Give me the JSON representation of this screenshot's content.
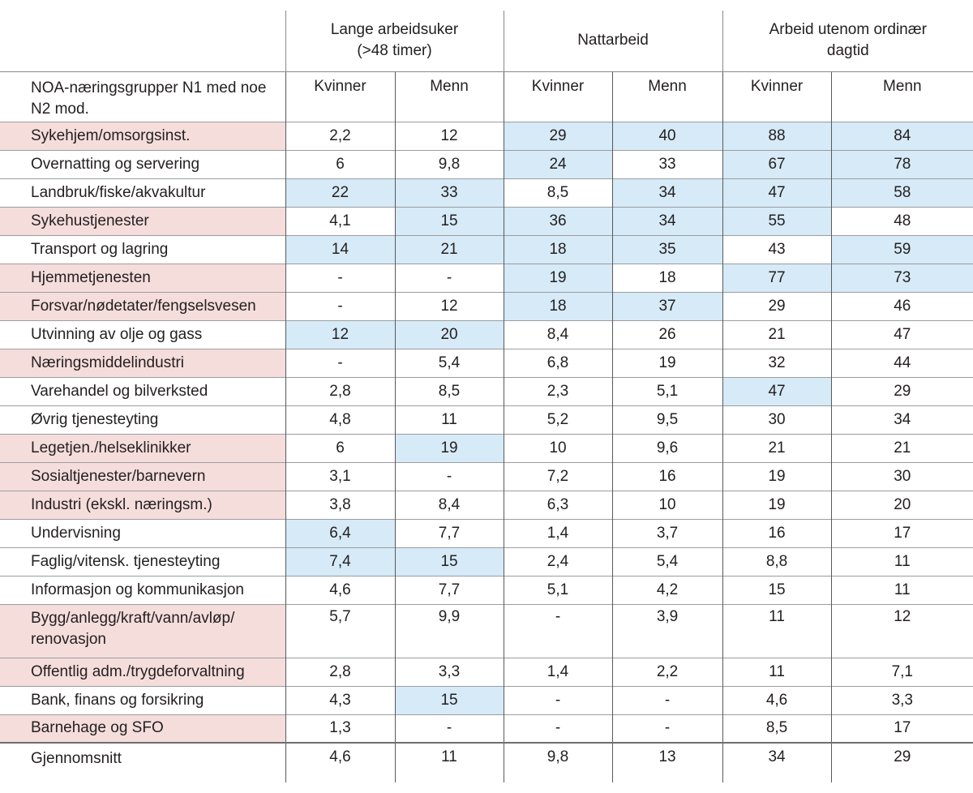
{
  "colors": {
    "row_highlight_pink": "#f5dddc",
    "cell_highlight_blue": "#d6eaf7",
    "border_light": "#9b9da0",
    "border_dark": "#58595b",
    "text": "#231f20"
  },
  "table": {
    "corner_label": "NOA-næringsgrupper N1 med noe\nN2 mod.",
    "groups": [
      {
        "label": "Lange arbeidsuker\n(>48 timer)"
      },
      {
        "label": "Nattarbeid"
      },
      {
        "label": "Arbeid utenom ordinær\ndagtid"
      }
    ],
    "sub_headers": [
      "Kvinner",
      "Menn",
      "Kvinner",
      "Menn",
      "Kvinner",
      "Menn"
    ],
    "rows": [
      {
        "label": "Sykehjem/omsorgsinst.",
        "pink": true,
        "cells": [
          {
            "v": "2,2"
          },
          {
            "v": "12"
          },
          {
            "v": "29",
            "hl": true
          },
          {
            "v": "40",
            "hl": true
          },
          {
            "v": "88",
            "hl": true
          },
          {
            "v": "84",
            "hl": true
          }
        ]
      },
      {
        "label": "Overnatting og servering",
        "pink": false,
        "cells": [
          {
            "v": "6"
          },
          {
            "v": "9,8"
          },
          {
            "v": "24",
            "hl": true
          },
          {
            "v": "33"
          },
          {
            "v": "67",
            "hl": true
          },
          {
            "v": "78",
            "hl": true
          }
        ]
      },
      {
        "label": "Landbruk/fiske/akvakultur",
        "pink": false,
        "cells": [
          {
            "v": "22",
            "hl": true
          },
          {
            "v": "33",
            "hl": true
          },
          {
            "v": "8,5"
          },
          {
            "v": "34",
            "hl": true
          },
          {
            "v": "47",
            "hl": true
          },
          {
            "v": "58",
            "hl": true
          }
        ]
      },
      {
        "label": "Sykehustjenester",
        "pink": true,
        "cells": [
          {
            "v": "4,1"
          },
          {
            "v": "15",
            "hl": true
          },
          {
            "v": "36",
            "hl": true
          },
          {
            "v": "34",
            "hl": true
          },
          {
            "v": "55",
            "hl": true
          },
          {
            "v": "48"
          }
        ]
      },
      {
        "label": "Transport og lagring",
        "pink": false,
        "cells": [
          {
            "v": "14",
            "hl": true
          },
          {
            "v": "21",
            "hl": true
          },
          {
            "v": "18",
            "hl": true
          },
          {
            "v": "35",
            "hl": true
          },
          {
            "v": "43"
          },
          {
            "v": "59",
            "hl": true
          }
        ]
      },
      {
        "label": "Hjemmetjenesten",
        "pink": true,
        "cells": [
          {
            "v": "-"
          },
          {
            "v": "-"
          },
          {
            "v": "19",
            "hl": true
          },
          {
            "v": "18"
          },
          {
            "v": "77",
            "hl": true
          },
          {
            "v": "73",
            "hl": true
          }
        ]
      },
      {
        "label": "Forsvar/nødetater/fengselsvesen",
        "pink": true,
        "cells": [
          {
            "v": "-"
          },
          {
            "v": "12"
          },
          {
            "v": "18",
            "hl": true
          },
          {
            "v": "37",
            "hl": true
          },
          {
            "v": "29"
          },
          {
            "v": "46"
          }
        ]
      },
      {
        "label": "Utvinning av olje og gass",
        "pink": false,
        "cells": [
          {
            "v": "12",
            "hl": true
          },
          {
            "v": "20",
            "hl": true
          },
          {
            "v": "8,4"
          },
          {
            "v": "26"
          },
          {
            "v": "21"
          },
          {
            "v": "47"
          }
        ]
      },
      {
        "label": "Næringsmiddelindustri",
        "pink": true,
        "cells": [
          {
            "v": "-"
          },
          {
            "v": "5,4"
          },
          {
            "v": "6,8"
          },
          {
            "v": "19"
          },
          {
            "v": "32"
          },
          {
            "v": "44"
          }
        ]
      },
      {
        "label": "Varehandel og bilverksted",
        "pink": false,
        "cells": [
          {
            "v": "2,8"
          },
          {
            "v": "8,5"
          },
          {
            "v": "2,3"
          },
          {
            "v": "5,1"
          },
          {
            "v": "47",
            "hl": true
          },
          {
            "v": "29"
          }
        ]
      },
      {
        "label": "Øvrig tjenesteyting",
        "pink": false,
        "cells": [
          {
            "v": "4,8"
          },
          {
            "v": "11"
          },
          {
            "v": "5,2"
          },
          {
            "v": "9,5"
          },
          {
            "v": "30"
          },
          {
            "v": "34"
          }
        ]
      },
      {
        "label": "Legetjen./helseklinikker",
        "pink": true,
        "cells": [
          {
            "v": "6"
          },
          {
            "v": "19",
            "hl": true
          },
          {
            "v": "10"
          },
          {
            "v": "9,6"
          },
          {
            "v": "21"
          },
          {
            "v": "21"
          }
        ]
      },
      {
        "label": "Sosialtjenester/barnevern",
        "pink": true,
        "cells": [
          {
            "v": "3,1"
          },
          {
            "v": "-"
          },
          {
            "v": "7,2"
          },
          {
            "v": "16"
          },
          {
            "v": "19"
          },
          {
            "v": "30"
          }
        ]
      },
      {
        "label": "Industri (ekskl. næringsm.)",
        "pink": true,
        "cells": [
          {
            "v": "3,8"
          },
          {
            "v": "8,4"
          },
          {
            "v": "6,3"
          },
          {
            "v": "10"
          },
          {
            "v": "19"
          },
          {
            "v": "20"
          }
        ]
      },
      {
        "label": "Undervisning",
        "pink": false,
        "cells": [
          {
            "v": "6,4",
            "hl": true
          },
          {
            "v": "7,7"
          },
          {
            "v": "1,4"
          },
          {
            "v": "3,7"
          },
          {
            "v": "16"
          },
          {
            "v": "17"
          }
        ]
      },
      {
        "label": "Faglig/vitensk. tjenesteyting",
        "pink": false,
        "cells": [
          {
            "v": "7,4",
            "hl": true
          },
          {
            "v": "15",
            "hl": true
          },
          {
            "v": "2,4"
          },
          {
            "v": "5,4"
          },
          {
            "v": "8,8"
          },
          {
            "v": "11"
          }
        ]
      },
      {
        "label": "Informasjon og kommunikasjon",
        "pink": false,
        "cells": [
          {
            "v": "4,6"
          },
          {
            "v": "7,7"
          },
          {
            "v": "5,1"
          },
          {
            "v": "4,2"
          },
          {
            "v": "15"
          },
          {
            "v": "11"
          }
        ]
      },
      {
        "label": "Bygg/anlegg/kraft/vann/avløp/\nrenovasjon",
        "pink": true,
        "tall": true,
        "cells": [
          {
            "v": "5,7"
          },
          {
            "v": "9,9"
          },
          {
            "v": "-"
          },
          {
            "v": "3,9"
          },
          {
            "v": "11"
          },
          {
            "v": "12"
          }
        ]
      },
      {
        "label": "Offentlig adm./trygdeforvaltning",
        "pink": true,
        "cells": [
          {
            "v": "2,8"
          },
          {
            "v": "3,3"
          },
          {
            "v": "1,4"
          },
          {
            "v": "2,2"
          },
          {
            "v": "11"
          },
          {
            "v": "7,1"
          }
        ]
      },
      {
        "label": "Bank, finans og forsikring",
        "pink": false,
        "cells": [
          {
            "v": "4,3"
          },
          {
            "v": "15",
            "hl": true
          },
          {
            "v": "-"
          },
          {
            "v": "-"
          },
          {
            "v": "4,6"
          },
          {
            "v": "3,3"
          }
        ]
      },
      {
        "label": "Barnehage og SFO",
        "pink": true,
        "cells": [
          {
            "v": "1,3"
          },
          {
            "v": "-"
          },
          {
            "v": "-"
          },
          {
            "v": "-"
          },
          {
            "v": "8,5"
          },
          {
            "v": "17"
          }
        ]
      },
      {
        "label": "Gjennomsnitt",
        "pink": false,
        "bold": true,
        "cells": [
          {
            "v": "4,6"
          },
          {
            "v": "11"
          },
          {
            "v": "9,8"
          },
          {
            "v": "13"
          },
          {
            "v": "34"
          },
          {
            "v": "29"
          }
        ]
      }
    ]
  }
}
